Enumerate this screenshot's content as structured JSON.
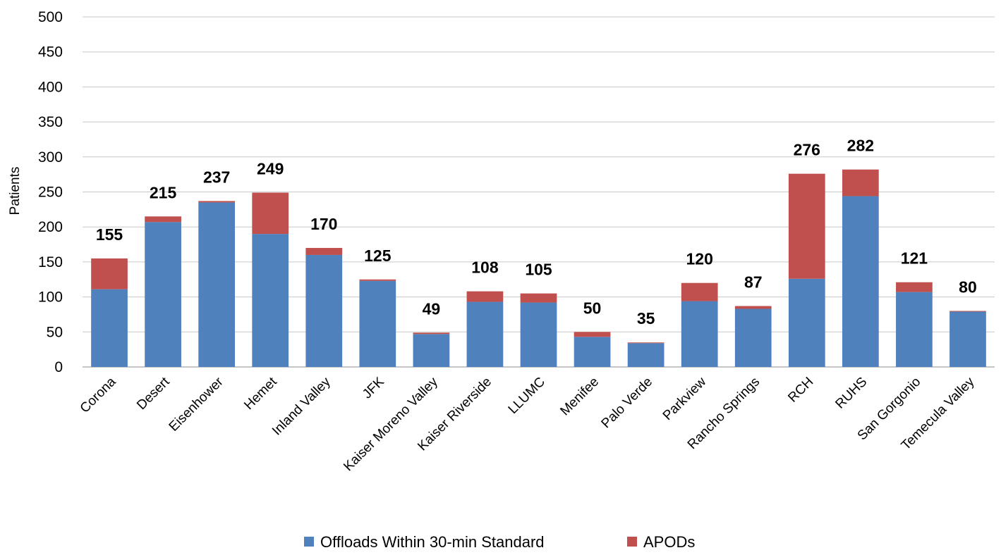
{
  "chart_data": {
    "type": "bar",
    "stacked": true,
    "title": "",
    "xlabel": "",
    "ylabel": "Patients",
    "ylim": [
      0,
      500
    ],
    "yticks": [
      0,
      50,
      100,
      150,
      200,
      250,
      300,
      350,
      400,
      450,
      500
    ],
    "grid": true,
    "legend_position": "bottom",
    "categories": [
      "Corona",
      "Desert",
      "Eisenhower",
      "Hemet",
      "Inland Valley",
      "JFK",
      "Kaiser  Moreno Valley",
      "Kaiser Riverside",
      "LLUMC",
      "Menifee",
      "Palo Verde",
      "Parkview",
      "Rancho Springs",
      "RCH",
      "RUHS",
      "San Gorgonio",
      "Temecula Valley"
    ],
    "series": [
      {
        "name": "Offloads Within 30-min Standard",
        "color": "#4f81bd",
        "values": [
          111,
          207,
          235,
          190,
          160,
          123,
          47,
          93,
          92,
          43,
          34,
          94,
          83,
          126,
          244,
          107,
          79
        ]
      },
      {
        "name": "APODs",
        "color": "#c0504d",
        "values": [
          44,
          8,
          2,
          59,
          10,
          2,
          2,
          15,
          13,
          7,
          1,
          26,
          4,
          150,
          38,
          14,
          1
        ]
      }
    ],
    "totals": [
      155,
      215,
      237,
      249,
      170,
      125,
      49,
      108,
      105,
      50,
      35,
      120,
      87,
      276,
      282,
      121,
      80
    ]
  }
}
